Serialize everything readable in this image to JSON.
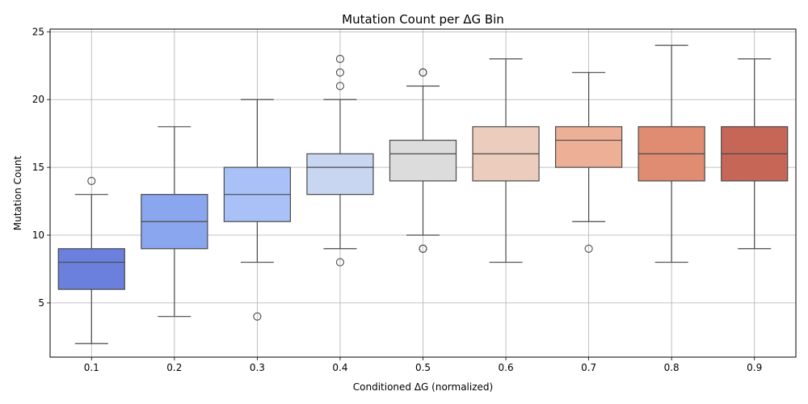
{
  "chart_data": {
    "type": "box",
    "title": "Mutation Count per ΔG Bin",
    "xlabel": "Conditioned ΔG (normalized)",
    "ylabel": "Mutation Count",
    "ylim": [
      1,
      25.2
    ],
    "yticks": [
      5,
      10,
      15,
      20,
      25
    ],
    "grid": true,
    "categories": [
      "0.1",
      "0.2",
      "0.3",
      "0.4",
      "0.5",
      "0.6",
      "0.7",
      "0.8",
      "0.9"
    ],
    "boxes": [
      {
        "category": "0.1",
        "whisker_low": 2,
        "q1": 6,
        "median": 8,
        "q3": 9,
        "whisker_high": 13,
        "outliers": [
          14
        ],
        "color": "#6a80dc"
      },
      {
        "category": "0.2",
        "whisker_low": 4,
        "q1": 9,
        "median": 11,
        "q3": 13,
        "whisker_high": 18,
        "outliers": [],
        "color": "#8aa6ee"
      },
      {
        "category": "0.3",
        "whisker_low": 8,
        "q1": 11,
        "median": 13,
        "q3": 15,
        "whisker_high": 20,
        "outliers": [
          4
        ],
        "color": "#a9c1f7"
      },
      {
        "category": "0.4",
        "whisker_low": 9,
        "q1": 13,
        "median": 15,
        "q3": 16,
        "whisker_high": 20,
        "outliers": [
          8,
          21,
          22,
          23
        ],
        "color": "#c8d6f1"
      },
      {
        "category": "0.5",
        "whisker_low": 10,
        "q1": 14,
        "median": 16,
        "q3": 17,
        "whisker_high": 21,
        "outliers": [
          9,
          9,
          22,
          22
        ],
        "color": "#dcdcdc"
      },
      {
        "category": "0.6",
        "whisker_low": 8,
        "q1": 14,
        "median": 16,
        "q3": 18,
        "whisker_high": 23,
        "outliers": [],
        "color": "#ecccbd"
      },
      {
        "category": "0.7",
        "whisker_low": 11,
        "q1": 15,
        "median": 17,
        "q3": 18,
        "whisker_high": 22,
        "outliers": [
          9
        ],
        "color": "#edb097"
      },
      {
        "category": "0.8",
        "whisker_low": 8,
        "q1": 14,
        "median": 16,
        "q3": 18,
        "whisker_high": 24,
        "outliers": [],
        "color": "#df8c73"
      },
      {
        "category": "0.9",
        "whisker_low": 9,
        "q1": 14,
        "median": 16,
        "q3": 18,
        "whisker_high": 23,
        "outliers": [],
        "color": "#c66657"
      }
    ]
  }
}
